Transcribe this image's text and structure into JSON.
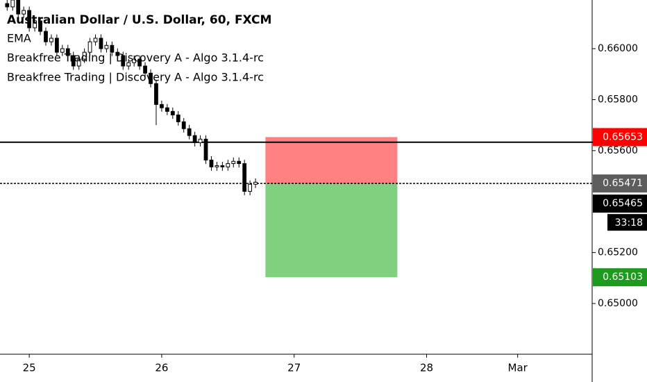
{
  "chart_data": {
    "type": "candlestick",
    "title": "Australian Dollar / U.S. Dollar, 60, FXCM",
    "indicators": [
      "EMA",
      "Breakfree Trading | Discovery A - Algo 3.1.4-rc",
      "Breakfree Trading | Discovery A - Algo 3.1.4-rc"
    ],
    "x": [
      -4,
      -3,
      -2,
      -1,
      0,
      1,
      2,
      3,
      4,
      5,
      6,
      7,
      8,
      9,
      10,
      11,
      12,
      13,
      14,
      15,
      16,
      17,
      18,
      19,
      20,
      21,
      22,
      23,
      24,
      25,
      26,
      27,
      28,
      29,
      30,
      31,
      32,
      33,
      34,
      35,
      36,
      37,
      38,
      39,
      40,
      41
    ],
    "open": [
      0.66177,
      0.66164,
      0.66191,
      0.66136,
      0.6615,
      0.66082,
      0.66109,
      0.66068,
      0.66027,
      0.66041,
      0.65986,
      0.66,
      0.65973,
      0.65932,
      0.65959,
      0.65986,
      0.66027,
      0.66041,
      0.66,
      0.66013,
      0.65986,
      0.65973,
      0.65932,
      0.65945,
      0.65959,
      0.65932,
      0.65904,
      0.65863,
      0.65781,
      0.65768,
      0.65754,
      0.6574,
      0.65713,
      0.65686,
      0.65659,
      0.65631,
      0.65645,
      0.65563,
      0.65536,
      0.65541,
      0.65536,
      0.65549,
      0.65558,
      0.65549,
      0.6544,
      0.65468
    ],
    "high": [
      0.66192,
      0.66206,
      0.66206,
      0.66165,
      0.66165,
      0.66124,
      0.66124,
      0.66083,
      0.66056,
      0.66056,
      0.66015,
      0.66015,
      0.65988,
      0.65974,
      0.66001,
      0.66042,
      0.66056,
      0.66056,
      0.66028,
      0.66028,
      0.66001,
      0.65988,
      0.6596,
      0.65974,
      0.65974,
      0.65947,
      0.65919,
      0.65878,
      0.65796,
      0.65783,
      0.65769,
      0.65755,
      0.65728,
      0.65701,
      0.65674,
      0.6566,
      0.6566,
      0.65578,
      0.65556,
      0.65556,
      0.65564,
      0.65573,
      0.65573,
      0.65564,
      0.65483,
      0.65491
    ],
    "low": [
      0.66149,
      0.66149,
      0.66121,
      0.66121,
      0.66067,
      0.66067,
      0.66053,
      0.66012,
      0.66012,
      0.65971,
      0.65971,
      0.65958,
      0.65917,
      0.65917,
      0.65944,
      0.65971,
      0.66012,
      0.65985,
      0.65985,
      0.65971,
      0.65958,
      0.65917,
      0.65917,
      0.6593,
      0.65917,
      0.65889,
      0.65848,
      0.657,
      0.65753,
      0.65739,
      0.65725,
      0.65698,
      0.65671,
      0.65644,
      0.65616,
      0.65616,
      0.65548,
      0.65521,
      0.65521,
      0.65521,
      0.65521,
      0.65534,
      0.65534,
      0.65425,
      0.65425,
      0.65453
    ],
    "close": [
      0.66164,
      0.66191,
      0.66136,
      0.6615,
      0.66082,
      0.66109,
      0.66068,
      0.66027,
      0.66041,
      0.65986,
      0.66,
      0.65973,
      0.65932,
      0.65959,
      0.65986,
      0.66027,
      0.66041,
      0.66,
      0.66013,
      0.65986,
      0.65973,
      0.65932,
      0.65945,
      0.65959,
      0.65932,
      0.65904,
      0.65863,
      0.65781,
      0.65768,
      0.65754,
      0.6574,
      0.65713,
      0.65686,
      0.65659,
      0.65631,
      0.65645,
      0.65563,
      0.65536,
      0.65541,
      0.65536,
      0.65549,
      0.65558,
      0.65549,
      0.6544,
      0.65468,
      0.65476
    ],
    "up_color": "#ffffff",
    "down_color": "#000000",
    "xlim": [
      -5.3,
      102
    ],
    "xticks": [
      {
        "value": 0,
        "label": "25"
      },
      {
        "value": 24,
        "label": "26"
      },
      {
        "value": 48,
        "label": "27"
      },
      {
        "value": 72,
        "label": "28"
      },
      {
        "value": 88.5,
        "label": "Mar"
      }
    ],
    "ylim": [
      0.64801,
      0.66191
    ],
    "yticks": [
      {
        "value": 0.66,
        "label": "0.66000"
      },
      {
        "value": 0.658,
        "label": "0.65800"
      },
      {
        "value": 0.656,
        "label": "0.65600"
      },
      {
        "value": 0.652,
        "label": "0.65200"
      },
      {
        "value": 0.65,
        "label": "0.65000"
      }
    ],
    "hline": 0.65633,
    "position": {
      "x_start": 42.8,
      "x_end": 66.7,
      "stop": 0.65653,
      "entry": 0.65471,
      "target": 0.65103,
      "stop_color": "#ff8080",
      "target_color": "#80d080"
    },
    "price_labels": [
      {
        "value": 0.65653,
        "label": "0.65653",
        "color": "#ff0000"
      },
      {
        "value": 0.65471,
        "label": "0.65471",
        "color": "#5d5d5d"
      },
      {
        "value": 0.65465,
        "label": "0.65465",
        "color": "#000000"
      },
      {
        "value": 0.65103,
        "label": "0.65103",
        "color": "#1e9a1e"
      }
    ],
    "countdown": "33:18"
  }
}
